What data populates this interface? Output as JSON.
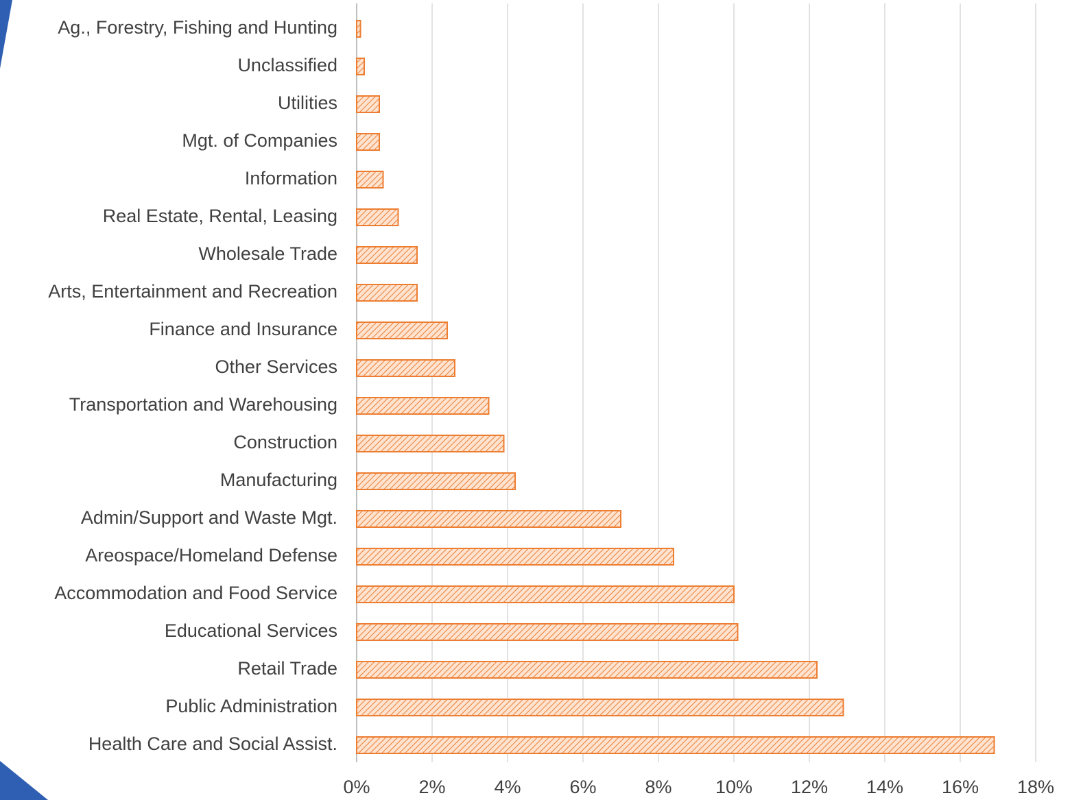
{
  "chart_data": {
    "type": "bar",
    "orientation": "horizontal",
    "categories": [
      "Ag., Forestry, Fishing and Hunting",
      "Unclassified",
      "Utilities",
      "Mgt. of Companies",
      "Information",
      "Real Estate, Rental, Leasing",
      "Wholesale Trade",
      "Arts, Entertainment and Recreation",
      "Finance and Insurance",
      "Other Services",
      "Transportation and Warehousing",
      "Construction",
      "Manufacturing",
      "Admin/Support and Waste Mgt.",
      "Areospace/Homeland Defense",
      "Accommodation and Food Service",
      "Educational Services",
      "Retail Trade",
      "Public Administration",
      "Health Care and Social Assist."
    ],
    "values": [
      0.1,
      0.2,
      0.6,
      0.6,
      0.7,
      1.1,
      1.6,
      1.6,
      2.4,
      2.6,
      3.5,
      3.9,
      4.2,
      7.0,
      8.4,
      10.0,
      10.1,
      12.2,
      12.9,
      16.9
    ],
    "color": "#ed7d31",
    "xlim": [
      0,
      18
    ],
    "xticks": [
      {
        "value": 0,
        "label": "0%"
      },
      {
        "value": 2,
        "label": "2%"
      },
      {
        "value": 4,
        "label": "4%"
      },
      {
        "value": 6,
        "label": "6%"
      },
      {
        "value": 8,
        "label": "8%"
      },
      {
        "value": 10,
        "label": "10%"
      },
      {
        "value": 12,
        "label": "12%"
      },
      {
        "value": 14,
        "label": "14%"
      },
      {
        "value": 16,
        "label": "16%"
      },
      {
        "value": 18,
        "label": "18%"
      }
    ],
    "grid": true
  }
}
